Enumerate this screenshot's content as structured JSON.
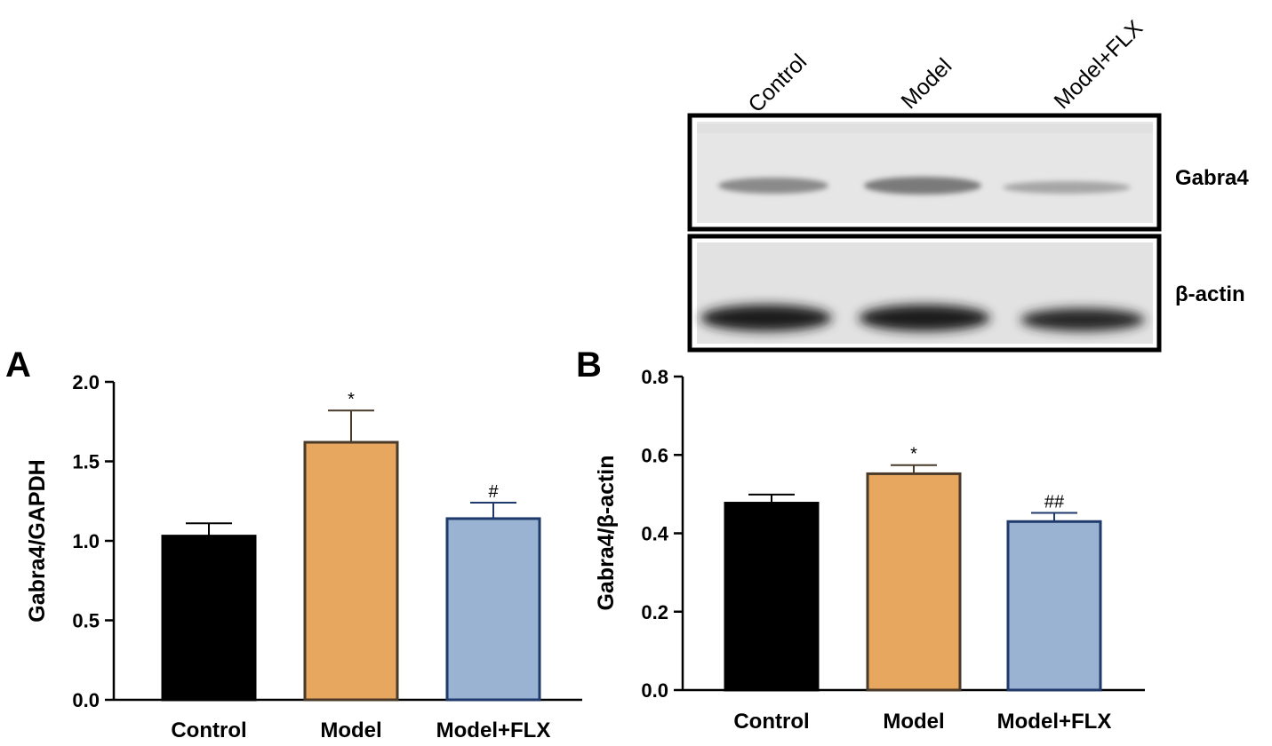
{
  "chart_data": [
    {
      "panel": "A",
      "type": "bar",
      "categories": [
        "Control",
        "Model",
        "Model+FLX"
      ],
      "values": [
        1.03,
        1.62,
        1.14
      ],
      "errors": [
        0.08,
        0.2,
        0.1
      ],
      "significance": [
        "",
        "*",
        "#"
      ],
      "ylabel": "Gabra4/GAPDH",
      "xlabel": "",
      "ylim": [
        0,
        2.0
      ],
      "yticks": [
        "0.0",
        "0.5",
        "1.0",
        "1.5",
        "2.0"
      ],
      "tick_values": [
        0,
        0.5,
        1.0,
        1.5,
        2.0
      ],
      "colors": [
        "#000000",
        "#e8a75f",
        "#9ab3d3"
      ],
      "edge_colors": [
        "#000000",
        "#4a3a2a",
        "#1f3a6b"
      ]
    },
    {
      "panel": "B",
      "type": "bar",
      "categories": [
        "Control",
        "Model",
        "Model+FLX"
      ],
      "values": [
        0.477,
        0.552,
        0.43
      ],
      "errors": [
        0.022,
        0.022,
        0.022
      ],
      "significance": [
        "",
        "*",
        "##"
      ],
      "ylabel": "Gabra4/β-actin",
      "xlabel": "",
      "ylim": [
        0,
        0.8
      ],
      "yticks": [
        "0.0",
        "0.2",
        "0.4",
        "0.6",
        "0.8"
      ],
      "tick_values": [
        0,
        0.2,
        0.4,
        0.6,
        0.8
      ],
      "colors": [
        "#000000",
        "#e8a75f",
        "#9ab3d3"
      ],
      "edge_colors": [
        "#000000",
        "#4a3a2a",
        "#1f3a6b"
      ]
    }
  ],
  "blot": {
    "lanes": [
      "Control",
      "Model",
      "Model+FLX"
    ],
    "bands": [
      "Gabra4",
      "β-actin"
    ]
  }
}
